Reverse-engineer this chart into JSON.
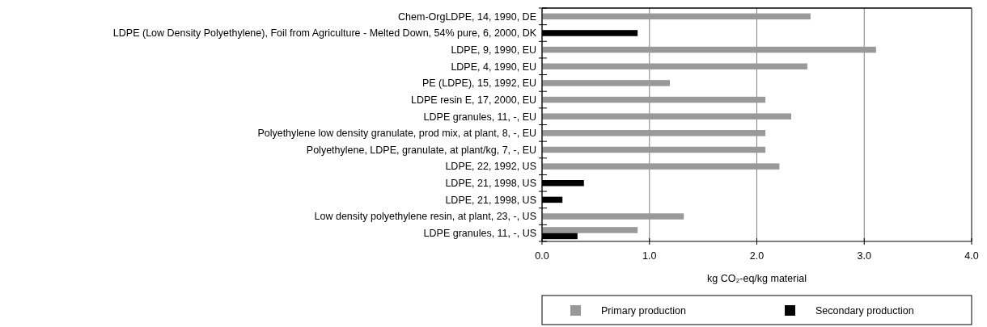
{
  "chart_data": {
    "type": "bar",
    "orientation": "horizontal",
    "xlabel": "kg CO₂-eq/kg material",
    "categories": [
      "Chem-OrgLDPE, 14, 1990, DE",
      "LDPE (Low Density Polyethylene), Foil from Agriculture - Melted Down, 54% pure, 6, 2000, DK",
      "LDPE, 9, 1990, EU",
      "LDPE, 4, 1990, EU",
      "PE (LDPE), 15, 1992, EU",
      "LDPE resin E, 17, 2000, EU",
      "LDPE granules, 11, -, EU",
      "Polyethylene low density granulate, prod mix, at plant, 8, -, EU",
      "Polyethylene, LDPE, granulate, at plant/kg, 7, -, EU",
      "LDPE, 22, 1992, US",
      "LDPE, 21, 1998, US",
      "LDPE, 21, 1998, US",
      "Low density polyethylene resin, at plant, 23, -, US",
      "LDPE granules, 11, -, US"
    ],
    "series": [
      {
        "name": "Primary production",
        "color": "#999999",
        "values": [
          2.5,
          null,
          3.11,
          2.47,
          1.19,
          2.08,
          2.32,
          2.08,
          2.08,
          2.21,
          null,
          null,
          1.32,
          0.89
        ]
      },
      {
        "name": "Secondary production",
        "color": "#000000",
        "values": [
          null,
          0.89,
          null,
          null,
          null,
          null,
          null,
          null,
          null,
          null,
          0.39,
          0.19,
          null,
          0.33
        ]
      }
    ],
    "xlim": [
      0,
      4
    ],
    "xticks": [
      {
        "value": 0,
        "label": "0.0"
      },
      {
        "value": 1,
        "label": "1.0"
      },
      {
        "value": 2,
        "label": "2.0"
      },
      {
        "value": 3,
        "label": "3.0"
      },
      {
        "value": 4,
        "label": "4.0"
      }
    ],
    "grid": "x",
    "legend": "bottom"
  }
}
